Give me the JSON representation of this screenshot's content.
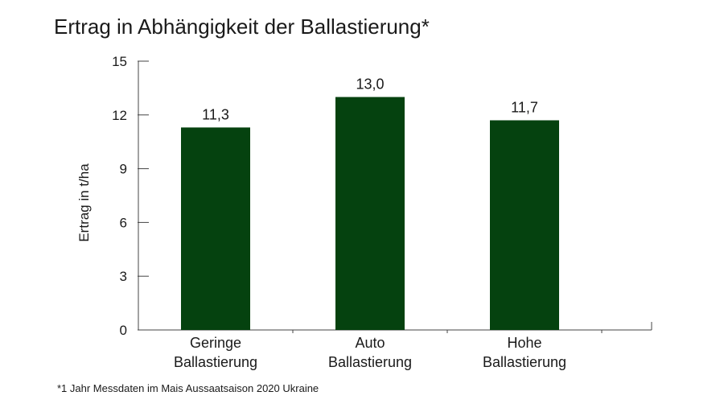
{
  "chart_data": {
    "type": "bar",
    "title": "Ertrag in Abhängigkeit der Ballastierung*",
    "ylabel": "Ertrag in t/ha",
    "xlabel": "",
    "ylim": [
      0,
      15
    ],
    "yticks": [
      0,
      3,
      6,
      9,
      12,
      15
    ],
    "categories": [
      [
        "Geringe",
        "Ballastierung"
      ],
      [
        "Auto",
        "Ballastierung"
      ],
      [
        "Hohe",
        "Ballastierung"
      ]
    ],
    "values": [
      11.3,
      13.0,
      11.7
    ],
    "value_labels": [
      "11,3",
      "13,0",
      "11,7"
    ],
    "bar_color": "#05420f",
    "grid": false,
    "footnote": "*1 Jahr Messdaten im Mais Aussaatsaison 2020 Ukraine"
  }
}
